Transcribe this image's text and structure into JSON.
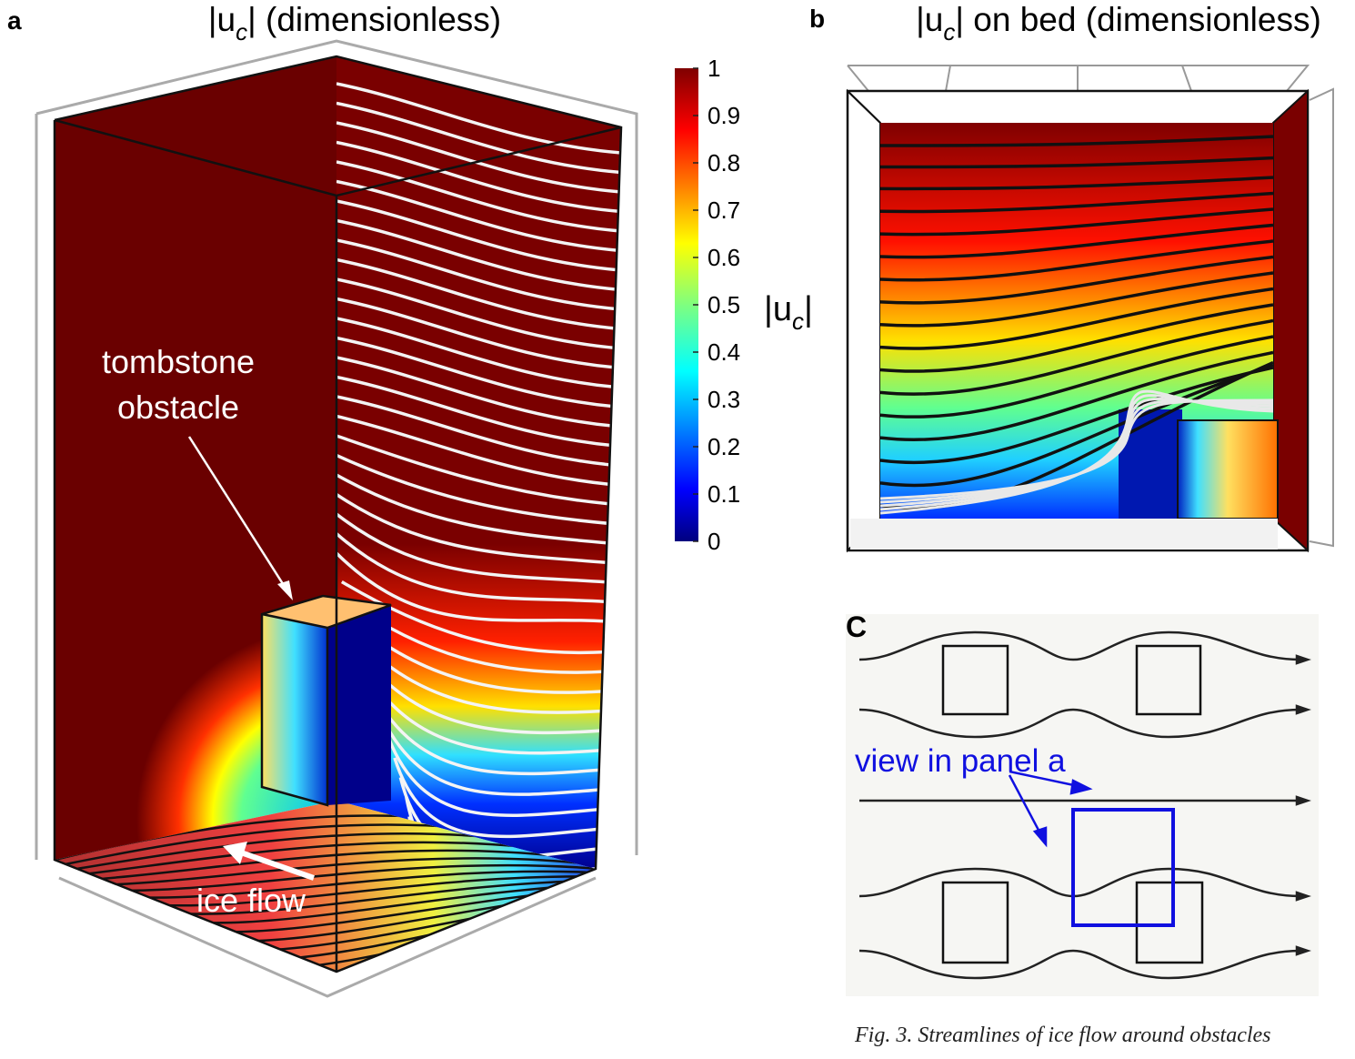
{
  "panel_a": {
    "label": "a",
    "title": {
      "prefix": "|u",
      "subscript": "c",
      "suffix": "| (dimensionless)"
    },
    "obstacle_label": [
      "tombstone",
      "obstacle"
    ],
    "flow_label": "ice flow"
  },
  "colorbar": {
    "label": {
      "prefix": "|u",
      "subscript": "c",
      "suffix": "|"
    },
    "range": [
      0,
      1
    ],
    "ticks": [
      0,
      0.1,
      0.2,
      0.3,
      0.4,
      0.5,
      0.6,
      0.7,
      0.8,
      0.9,
      1
    ]
  },
  "panel_b": {
    "label": "b",
    "title": {
      "prefix": "|u",
      "subscript": "c",
      "suffix": "| on bed (dimensionless)"
    }
  },
  "panel_c": {
    "label": "C",
    "annotation": "view in panel a",
    "caption": "Fig. 3. Streamlines of ice flow around obstacles"
  }
}
